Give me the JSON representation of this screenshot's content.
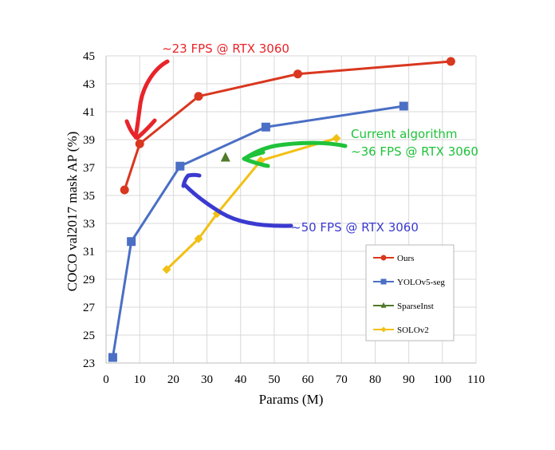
{
  "chart_data": {
    "type": "line",
    "xlabel": "Params (M)",
    "ylabel": "COCO val2017 mask AP (%)",
    "xlim": [
      0,
      110
    ],
    "ylim": [
      23,
      45
    ],
    "xticks": [
      0,
      10,
      20,
      30,
      40,
      50,
      60,
      70,
      80,
      90,
      100,
      110
    ],
    "yticks": [
      23,
      25,
      27,
      29,
      31,
      33,
      35,
      37,
      39,
      41,
      43,
      45
    ],
    "grid": true,
    "legend_position": "bottom-right",
    "series": [
      {
        "name": "Ours",
        "color": "#d9371f",
        "marker": "circle",
        "points": [
          [
            5.5,
            35.4
          ],
          [
            10,
            38.7
          ],
          [
            27.5,
            42.1
          ],
          [
            57,
            43.7
          ],
          [
            102.5,
            44.6
          ]
        ]
      },
      {
        "name": "YOLOv5-seg",
        "color": "#4a6fc4",
        "marker": "square",
        "points": [
          [
            2,
            23.4
          ],
          [
            7.5,
            31.7
          ],
          [
            22,
            37.1
          ],
          [
            47.5,
            39.9
          ],
          [
            88.5,
            41.4
          ]
        ]
      },
      {
        "name": "SparseInst",
        "color": "#4f7a2a",
        "marker": "triangle",
        "points": [
          [
            35.5,
            37.7
          ]
        ]
      },
      {
        "name": "SOLOv2",
        "color": "#f2c014",
        "marker": "diamond",
        "points": [
          [
            18,
            29.7
          ],
          [
            27.5,
            31.9
          ],
          [
            33,
            33.7
          ],
          [
            46,
            37.5
          ],
          [
            68.5,
            39.1
          ]
        ]
      }
    ],
    "annotations": [
      {
        "text": "~23 FPS @ RTX 3060",
        "color": "#e8242a"
      },
      {
        "text": "Current algorithm",
        "color": "#1fc23a"
      },
      {
        "text": "~36 FPS @ RTX 3060",
        "color": "#1fc23a"
      },
      {
        "text": "~50 FPS @ RTX 3060",
        "color": "#3a3ad0"
      }
    ]
  }
}
